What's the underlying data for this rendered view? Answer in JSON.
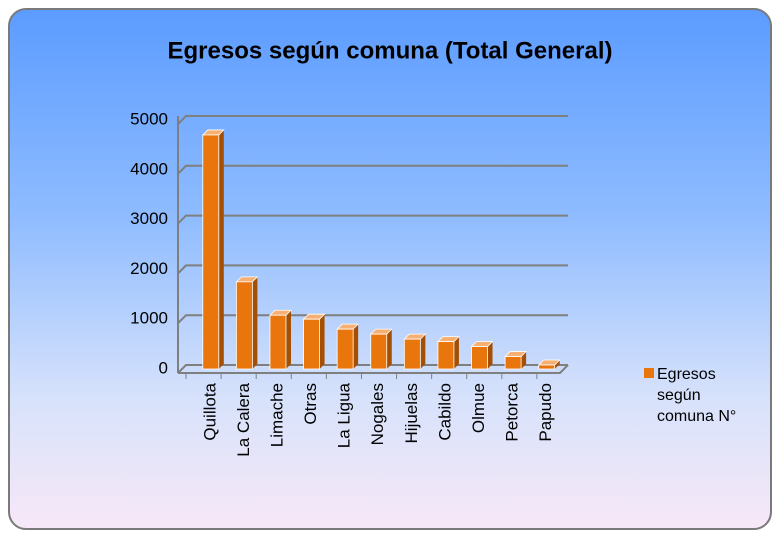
{
  "chart_data": {
    "type": "bar3d",
    "title": "Egresos según comuna  (Total General)",
    "categories": [
      "Quillota",
      "La Calera",
      "Limache",
      "Otras",
      "La Ligua",
      "Nogales",
      "Hijuelas",
      "Cabildo",
      "Olmue",
      "Petorca",
      "Papudo"
    ],
    "series": [
      {
        "name": "Egresos según comuna N°",
        "color": "#e8760c",
        "values": [
          4700,
          1750,
          1080,
          1000,
          800,
          700,
          600,
          550,
          450,
          250,
          80
        ]
      }
    ],
    "ylim": [
      0,
      5000
    ],
    "yticks": [
      0,
      1000,
      2000,
      3000,
      4000,
      5000
    ],
    "grid": true,
    "legend": "right"
  }
}
